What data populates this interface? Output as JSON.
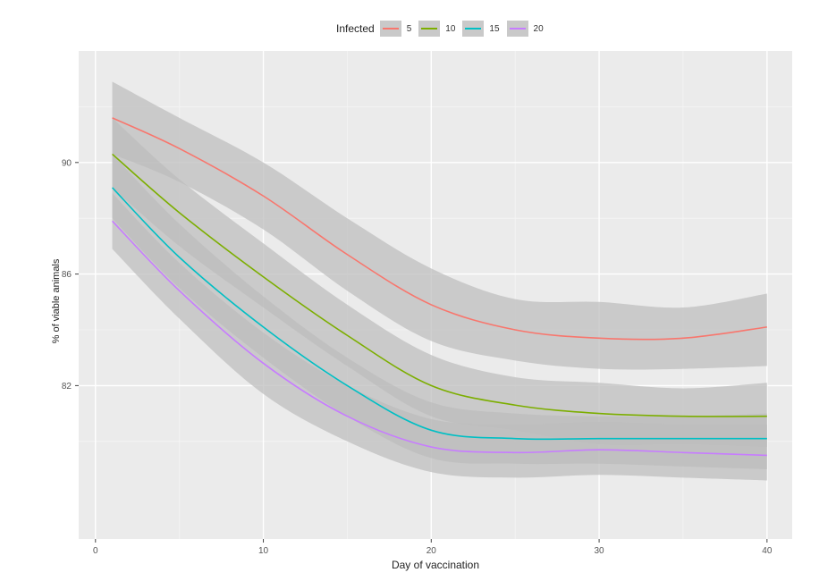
{
  "legend": {
    "title": "Infected",
    "items": [
      {
        "label": "5",
        "color": "#F8766D"
      },
      {
        "label": "10",
        "color": "#7CAE00"
      },
      {
        "label": "15",
        "color": "#00BFC4"
      },
      {
        "label": "20",
        "color": "#C77CFF"
      }
    ]
  },
  "chart_data": {
    "type": "line",
    "title": "",
    "xlabel": "Day of vaccination",
    "ylabel": "% of viable animals",
    "xlim": [
      -1,
      41.5
    ],
    "ylim": [
      76.5,
      94
    ],
    "x_ticks": [
      0,
      10,
      20,
      30,
      40
    ],
    "y_ticks": [
      82,
      86,
      90
    ],
    "grid": true,
    "legend_position": "top",
    "band_color": "#bdbdbd",
    "series": [
      {
        "name": "5",
        "color": "#F8766D",
        "x": [
          1,
          5,
          10,
          15,
          20,
          25,
          30,
          35,
          40
        ],
        "y": [
          91.6,
          90.5,
          88.8,
          86.7,
          84.9,
          84.0,
          83.7,
          83.7,
          84.1
        ],
        "lower": [
          90.3,
          89.3,
          87.6,
          85.4,
          83.6,
          82.9,
          82.6,
          82.6,
          82.7
        ],
        "upper": [
          92.9,
          91.6,
          90.0,
          88.0,
          86.2,
          85.1,
          85.0,
          84.8,
          85.3
        ]
      },
      {
        "name": "10",
        "color": "#7CAE00",
        "x": [
          1,
          5,
          10,
          15,
          20,
          25,
          30,
          35,
          40
        ],
        "y": [
          90.3,
          88.2,
          85.9,
          83.8,
          82.0,
          81.3,
          81.0,
          80.9,
          80.9
        ],
        "lower": [
          89.1,
          87.0,
          84.8,
          82.7,
          80.9,
          80.4,
          79.9,
          79.9,
          79.8
        ],
        "upper": [
          91.6,
          89.4,
          87.1,
          84.9,
          83.1,
          82.3,
          82.1,
          81.9,
          82.1
        ]
      },
      {
        "name": "15",
        "color": "#00BFC4",
        "x": [
          1,
          5,
          10,
          15,
          20,
          25,
          30,
          35,
          40
        ],
        "y": [
          89.1,
          86.6,
          84.1,
          82.0,
          80.4,
          80.1,
          80.1,
          80.1,
          80.1
        ],
        "lower": [
          88.0,
          85.5,
          83.0,
          80.9,
          79.4,
          79.2,
          79.2,
          79.1,
          79.0
        ],
        "upper": [
          90.3,
          87.8,
          85.2,
          83.0,
          81.4,
          81.0,
          80.9,
          80.9,
          81.0
        ]
      },
      {
        "name": "20",
        "color": "#C77CFF",
        "x": [
          1,
          5,
          10,
          15,
          20,
          25,
          30,
          35,
          40
        ],
        "y": [
          87.9,
          85.4,
          82.8,
          80.9,
          79.8,
          79.6,
          79.7,
          79.6,
          79.5
        ],
        "lower": [
          86.9,
          84.4,
          81.7,
          80.0,
          78.9,
          78.7,
          78.8,
          78.7,
          78.6
        ],
        "upper": [
          88.9,
          86.4,
          83.9,
          82.0,
          80.8,
          80.6,
          80.7,
          80.6,
          80.6
        ]
      }
    ]
  }
}
